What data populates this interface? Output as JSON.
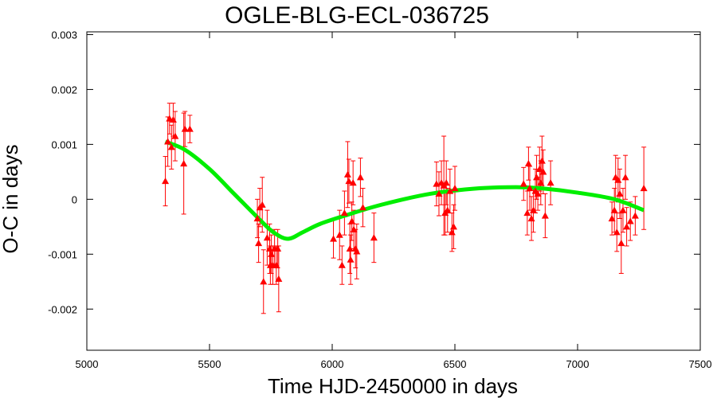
{
  "chart_data": {
    "type": "scatter",
    "title": "OGLE-BLG-ECL-036725",
    "xlabel": "Time HJD-2450000 in days",
    "ylabel": "O-C in days",
    "xlim": [
      5000,
      7500
    ],
    "ylim": [
      -0.00275,
      0.00305
    ],
    "x_ticks": [
      5000,
      5500,
      6000,
      6500,
      7000,
      7500
    ],
    "x_tick_labels": [
      "5000",
      "5500",
      "6000",
      "6500",
      "7000",
      "7500"
    ],
    "y_ticks": [
      -0.002,
      -0.001,
      0,
      0.001,
      0.002,
      0.003
    ],
    "y_tick_labels": [
      "-0.002",
      "-0.001",
      "0",
      "0.001",
      "0.002",
      "0.003"
    ],
    "grid": false,
    "legend": "none",
    "series": [
      {
        "kind": "points-with-errorbars",
        "color": "#ff0000",
        "marker": "triangle",
        "points": [
          {
            "x": 5320,
            "y": 0.00033,
            "err": 0.00045
          },
          {
            "x": 5330,
            "y": 0.00105,
            "err": 0.00045
          },
          {
            "x": 5337,
            "y": 0.00147,
            "err": 0.00028
          },
          {
            "x": 5345,
            "y": 0.00095,
            "err": 0.0004
          },
          {
            "x": 5352,
            "y": 0.00145,
            "err": 0.0003
          },
          {
            "x": 5360,
            "y": 0.00115,
            "err": 0.00045
          },
          {
            "x": 5395,
            "y": 0.00065,
            "err": 0.00092
          },
          {
            "x": 5400,
            "y": 0.00128,
            "err": 0.00032
          },
          {
            "x": 5420,
            "y": 0.00128,
            "err": 0.00025
          },
          {
            "x": 5695,
            "y": -0.00035,
            "err": 0.00035
          },
          {
            "x": 5700,
            "y": -0.0008,
            "err": 0.00035
          },
          {
            "x": 5705,
            "y": -0.00015,
            "err": 0.00035
          },
          {
            "x": 5715,
            "y": -0.0001,
            "err": 0.0005
          },
          {
            "x": 5720,
            "y": -0.0015,
            "err": 0.00058
          },
          {
            "x": 5735,
            "y": -0.0007,
            "err": 0.0005
          },
          {
            "x": 5745,
            "y": -0.0009,
            "err": 0.00045
          },
          {
            "x": 5748,
            "y": -0.0012,
            "err": 0.00035
          },
          {
            "x": 5752,
            "y": -0.001,
            "err": 0.00035
          },
          {
            "x": 5758,
            "y": -0.0012,
            "err": 0.00035
          },
          {
            "x": 5765,
            "y": -0.0009,
            "err": 0.00035
          },
          {
            "x": 5772,
            "y": -0.0012,
            "err": 0.00035
          },
          {
            "x": 5778,
            "y": -0.0009,
            "err": 0.00035
          },
          {
            "x": 5782,
            "y": -0.00145,
            "err": 0.0006
          },
          {
            "x": 6005,
            "y": -0.00072,
            "err": 0.00035
          },
          {
            "x": 6030,
            "y": -0.00065,
            "err": 0.00045
          },
          {
            "x": 6040,
            "y": -0.0012,
            "err": 0.00035
          },
          {
            "x": 6050,
            "y": -0.00025,
            "err": 0.0004
          },
          {
            "x": 6063,
            "y": 0.00045,
            "err": 0.0006
          },
          {
            "x": 6068,
            "y": 0.00033,
            "err": 0.0004
          },
          {
            "x": 6072,
            "y": -0.0009,
            "err": 0.00045
          },
          {
            "x": 6075,
            "y": -0.0011,
            "err": 0.00045
          },
          {
            "x": 6080,
            "y": -0.0004,
            "err": 0.00035
          },
          {
            "x": 6085,
            "y": 0.0003,
            "err": 0.0004
          },
          {
            "x": 6088,
            "y": -0.00055,
            "err": 0.00035
          },
          {
            "x": 6095,
            "y": -0.0009,
            "err": 0.00035
          },
          {
            "x": 6100,
            "y": -0.00095,
            "err": 0.0005
          },
          {
            "x": 6115,
            "y": 0.0004,
            "err": 0.00035
          },
          {
            "x": 6125,
            "y": -0.00015,
            "err": 0.00035
          },
          {
            "x": 6170,
            "y": -0.0007,
            "err": 0.00045
          },
          {
            "x": 6425,
            "y": 0.00028,
            "err": 0.0004
          },
          {
            "x": 6435,
            "y": 0.0001,
            "err": 0.0004
          },
          {
            "x": 6445,
            "y": 0.0003,
            "err": 0.0004
          },
          {
            "x": 6455,
            "y": 0.00025,
            "err": 0.0009
          },
          {
            "x": 6460,
            "y": -0.00025,
            "err": 0.0004
          },
          {
            "x": 6465,
            "y": 0.0003,
            "err": 0.0004
          },
          {
            "x": 6470,
            "y": -0.0002,
            "err": 0.0004
          },
          {
            "x": 6480,
            "y": 0.00015,
            "err": 0.0004
          },
          {
            "x": 6488,
            "y": -0.0006,
            "err": 0.00035
          },
          {
            "x": 6495,
            "y": -0.0005,
            "err": 0.0004
          },
          {
            "x": 6500,
            "y": 0.0002,
            "err": 0.0004
          },
          {
            "x": 6780,
            "y": 0.00028,
            "err": 0.0003
          },
          {
            "x": 6795,
            "y": -0.00025,
            "err": 0.0004
          },
          {
            "x": 6800,
            "y": 0.00065,
            "err": 0.0003
          },
          {
            "x": 6805,
            "y": 0.0002,
            "err": 0.0004
          },
          {
            "x": 6812,
            "y": -0.00035,
            "err": 0.0004
          },
          {
            "x": 6820,
            "y": -0.0002,
            "err": 0.0004
          },
          {
            "x": 6828,
            "y": 0.00015,
            "err": 0.0004
          },
          {
            "x": 6833,
            "y": 0.0004,
            "err": 0.0004
          },
          {
            "x": 6838,
            "y": 0.0001,
            "err": 0.0003
          },
          {
            "x": 6845,
            "y": 0.00055,
            "err": 0.0004
          },
          {
            "x": 6850,
            "y": 0.0003,
            "err": 0.0004
          },
          {
            "x": 6855,
            "y": 0.0007,
            "err": 0.00045
          },
          {
            "x": 6860,
            "y": 0.0005,
            "err": 0.0004
          },
          {
            "x": 6868,
            "y": -0.0003,
            "err": 0.0004
          },
          {
            "x": 6890,
            "y": 0.0003,
            "err": 0.0004
          },
          {
            "x": 7140,
            "y": -0.00035,
            "err": 0.0003
          },
          {
            "x": 7150,
            "y": -0.0002,
            "err": 0.0004
          },
          {
            "x": 7155,
            "y": 0.0004,
            "err": 0.0004
          },
          {
            "x": 7160,
            "y": -0.0006,
            "err": 0.00035
          },
          {
            "x": 7165,
            "y": 0.00035,
            "err": 0.0004
          },
          {
            "x": 7172,
            "y": 0.0001,
            "err": 0.00045
          },
          {
            "x": 7178,
            "y": -0.0008,
            "err": 0.00055
          },
          {
            "x": 7185,
            "y": -0.0002,
            "err": 0.0004
          },
          {
            "x": 7195,
            "y": 0.0004,
            "err": 0.0004
          },
          {
            "x": 7200,
            "y": -0.0005,
            "err": 0.00035
          },
          {
            "x": 7215,
            "y": -0.0004,
            "err": 0.00035
          },
          {
            "x": 7235,
            "y": -0.0003,
            "err": 0.00035
          },
          {
            "x": 7270,
            "y": 0.0002,
            "err": 0.00075
          }
        ]
      },
      {
        "kind": "line",
        "color": "#00ee00",
        "x": [
          5320,
          5400,
          5500,
          5600,
          5700,
          5760,
          5820,
          5880,
          5950,
          6050,
          6200,
          6400,
          6600,
          6750,
          6850,
          7000,
          7150,
          7270
        ],
        "y": [
          0.00105,
          0.0009,
          0.00055,
          0.0001,
          -0.00035,
          -0.0006,
          -0.00072,
          -0.0006,
          -0.00045,
          -0.0003,
          -0.0001,
          0.0001,
          0.0002,
          0.00022,
          0.0002,
          0.00012,
          0.0,
          -0.0002
        ]
      }
    ]
  }
}
